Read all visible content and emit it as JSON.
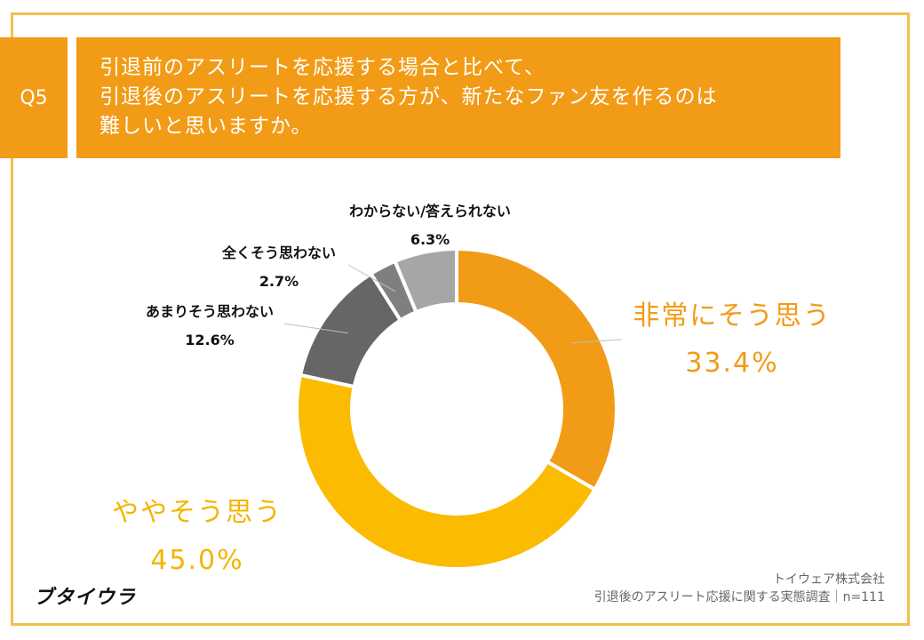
{
  "question": {
    "badge": "Q5",
    "lines": [
      "引退前のアスリートを応援する場合と比べて、",
      "引退後のアスリートを応援する方が、新たなファン友を作るのは",
      "難しいと思いますか。"
    ]
  },
  "chart_data": {
    "type": "pie",
    "donut": true,
    "slices": [
      {
        "label": "非常にそう思う",
        "value": 33.4,
        "value_text": "33.4%",
        "color": "#f29b16"
      },
      {
        "label": "ややそう思う",
        "value": 45.0,
        "value_text": "45.0%",
        "color": "#fbbb00"
      },
      {
        "label": "あまりそう思わない",
        "value": 12.6,
        "value_text": "12.6%",
        "color": "#666666"
      },
      {
        "label": "全くそう思わない",
        "value": 2.7,
        "value_text": "2.7%",
        "color": "#7f7f7f"
      },
      {
        "label": "わからない/答えられない",
        "value": 6.3,
        "value_text": "6.3%",
        "color": "#a6a6a6"
      }
    ]
  },
  "footer": {
    "logo": "ブタイウラ",
    "company": "トイウェア株式会社",
    "survey": "引退後のアスリート応援に関する実態調査｜n=111"
  }
}
